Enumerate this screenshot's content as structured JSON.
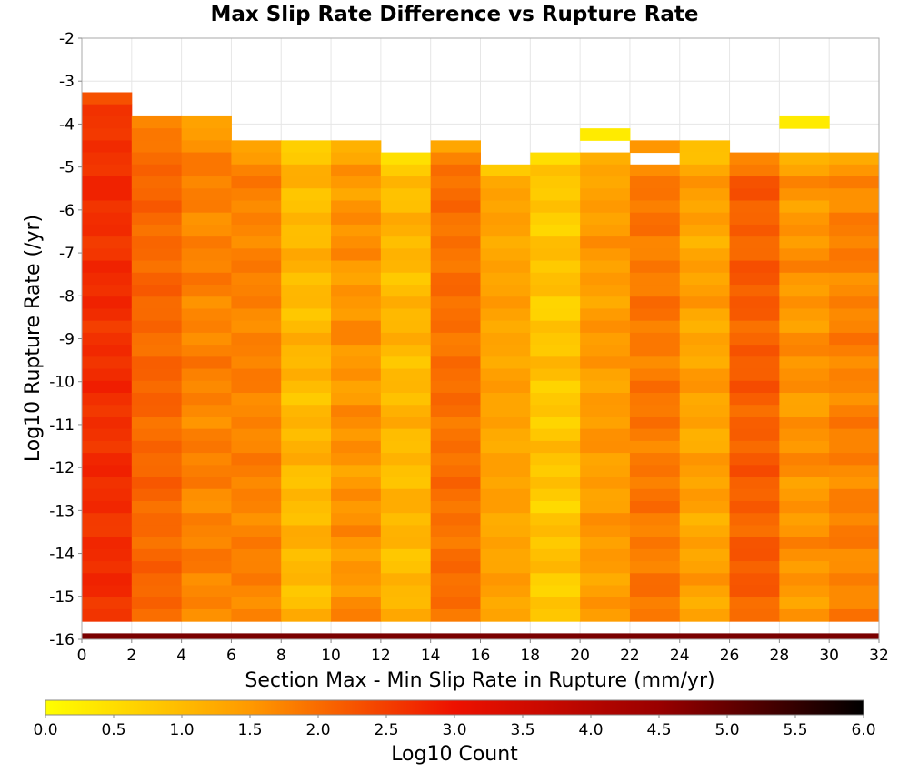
{
  "chart_data": {
    "type": "heatmap",
    "title": "Max Slip Rate Difference vs Rupture Rate",
    "xlabel": "Section Max - Min Slip Rate in Rupture (mm/yr)",
    "ylabel": "Log10 Rupture Rate (/yr)",
    "xlim": [
      0,
      32
    ],
    "ylim": [
      -16,
      -2
    ],
    "x_ticks": [
      "0",
      "2",
      "4",
      "6",
      "8",
      "10",
      "12",
      "14",
      "16",
      "18",
      "20",
      "22",
      "24",
      "26",
      "28",
      "30",
      "32"
    ],
    "y_ticks": [
      "-2",
      "-3",
      "-4",
      "-5",
      "-6",
      "-7",
      "-8",
      "-9",
      "-10",
      "-11",
      "-12",
      "-13",
      "-14",
      "-15",
      "-16"
    ],
    "x_bin_width": 2,
    "y_bin_height": 0.28,
    "grid": true,
    "colorbar": {
      "label": "Log10 Count",
      "range": [
        0.0,
        6.0
      ],
      "ticks": [
        "0.0",
        "0.5",
        "1.0",
        "1.5",
        "2.0",
        "2.5",
        "3.0",
        "3.5",
        "4.0",
        "4.5",
        "5.0",
        "5.5",
        "6.0"
      ],
      "colors": [
        "#ffff00",
        "#ff9900",
        "#ee1100",
        "#990000",
        "#000000"
      ]
    },
    "columns": [
      {
        "x": 0,
        "top": -3.26,
        "base": 2.68,
        "var": 0.12
      },
      {
        "x": 2,
        "top": -3.82,
        "base": 2.05,
        "var": 0.12
      },
      {
        "x": 4,
        "top": -3.82,
        "base": 1.75,
        "var": 0.15
      },
      {
        "x": 6,
        "top": -4.38,
        "base": 1.75,
        "var": 0.12
      },
      {
        "x": 8,
        "top": -4.38,
        "base": 1.05,
        "var": 0.18
      },
      {
        "x": 10,
        "top": -4.38,
        "base": 1.55,
        "var": 0.18
      },
      {
        "x": 12,
        "top": -4.66,
        "base": 1.05,
        "var": 0.18
      },
      {
        "x": 14,
        "top": -4.38,
        "base": 1.95,
        "var": 0.12
      },
      {
        "x": 16,
        "top": -4.94,
        "base": 1.35,
        "var": 0.12
      },
      {
        "x": 18,
        "top": -4.66,
        "base": 0.85,
        "var": 0.2
      },
      {
        "x": 20,
        "top": -4.66,
        "base": 1.45,
        "var": 0.15
      },
      {
        "x": 22,
        "top": -4.38,
        "base": 1.85,
        "var": 0.15
      },
      {
        "x": 24,
        "top": -4.38,
        "base": 1.35,
        "var": 0.18
      },
      {
        "x": 26,
        "top": -4.66,
        "base": 2.15,
        "var": 0.15
      },
      {
        "x": 28,
        "top": -4.66,
        "base": 1.55,
        "var": 0.18
      },
      {
        "x": 30,
        "top": -4.66,
        "base": 1.75,
        "var": 0.15
      }
    ],
    "isolated_cells": [
      {
        "x": 20,
        "y": -4.1,
        "value": 0.3
      },
      {
        "x": 28,
        "y": -3.82,
        "value": 0.3
      }
    ],
    "gap_cells": [
      {
        "x": 20,
        "y": -4.38
      },
      {
        "x": 22,
        "y": -4.66
      }
    ],
    "bottom_row": {
      "y": -16,
      "value": 4.8
    }
  }
}
